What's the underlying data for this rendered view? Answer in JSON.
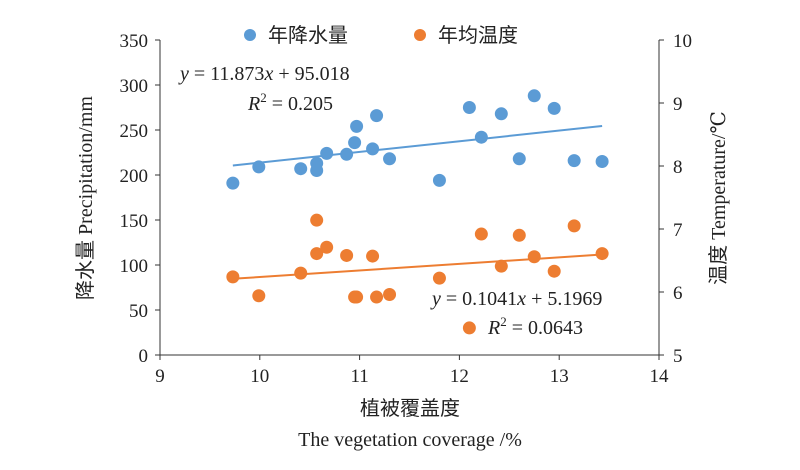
{
  "chart_data": {
    "type": "scatter",
    "xlabel_cn": "植被覆盖度",
    "xlabel_en": "The vegetation coverage /%",
    "ylabel_left": "降水量 Precipitation/mm",
    "ylabel_right": "温度 Temperature/℃",
    "xlim": [
      9,
      14
    ],
    "ylim_left": [
      0,
      350
    ],
    "ylim_right": [
      5,
      10
    ],
    "x_ticks": [
      "9",
      "10",
      "11",
      "12",
      "13",
      "14"
    ],
    "y_left_ticks": [
      "0",
      "50",
      "100",
      "150",
      "200",
      "250",
      "300",
      "350"
    ],
    "y_right_ticks": [
      "5",
      "6",
      "7",
      "8",
      "9",
      "10"
    ],
    "legend_position": "top",
    "grid": false,
    "series": [
      {
        "name": "年降水量",
        "axis": "left",
        "color": "#5b9bd5",
        "points": [
          [
            9.73,
            191
          ],
          [
            9.99,
            209
          ],
          [
            10.41,
            207
          ],
          [
            10.57,
            213
          ],
          [
            10.57,
            205
          ],
          [
            10.67,
            224
          ],
          [
            10.87,
            223
          ],
          [
            10.95,
            236
          ],
          [
            10.97,
            254
          ],
          [
            11.13,
            229
          ],
          [
            11.17,
            266
          ],
          [
            11.3,
            218
          ],
          [
            11.8,
            194
          ],
          [
            12.1,
            275
          ],
          [
            12.22,
            242
          ],
          [
            12.42,
            268
          ],
          [
            12.6,
            218
          ],
          [
            12.75,
            288
          ],
          [
            12.95,
            274
          ],
          [
            13.15,
            216
          ],
          [
            13.43,
            215
          ]
        ],
        "trend": {
          "slope": 11.873,
          "intercept": 95.018,
          "x_range": [
            9.73,
            13.43
          ]
        },
        "equation_label": "y = 11.873x + 95.018",
        "r2_label": "R2 = 0.205"
      },
      {
        "name": "年均温度",
        "axis": "right",
        "color": "#ed7d31",
        "points": [
          [
            9.73,
            6.24
          ],
          [
            9.99,
            5.94
          ],
          [
            10.41,
            6.3
          ],
          [
            10.57,
            7.14
          ],
          [
            10.57,
            6.61
          ],
          [
            10.67,
            6.71
          ],
          [
            10.87,
            6.58
          ],
          [
            10.95,
            5.92
          ],
          [
            10.97,
            5.92
          ],
          [
            11.13,
            6.57
          ],
          [
            11.17,
            5.92
          ],
          [
            11.3,
            5.96
          ],
          [
            11.8,
            6.22
          ],
          [
            12.1,
            5.43
          ],
          [
            12.22,
            6.92
          ],
          [
            12.42,
            6.41
          ],
          [
            12.6,
            6.9
          ],
          [
            12.75,
            6.56
          ],
          [
            12.95,
            6.33
          ],
          [
            13.15,
            7.05
          ],
          [
            13.43,
            6.61
          ]
        ],
        "trend": {
          "slope": 0.1041,
          "intercept": 5.1969,
          "x_range": [
            9.73,
            13.43
          ]
        },
        "equation_label": "y = 0.1041x + 5.1969",
        "r2_label": "R2 = 0.0643"
      }
    ]
  }
}
